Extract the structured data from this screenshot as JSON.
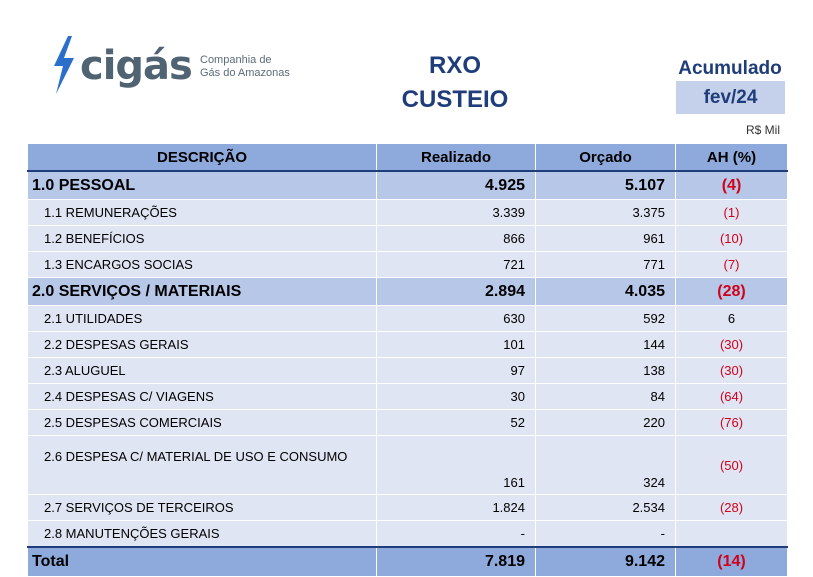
{
  "logo": {
    "name": "cigás",
    "subtitle_line1": "Companhia de",
    "subtitle_line2": "Gás do Amazonas",
    "color": "#4f6373",
    "bolt_color": "#2a6fc9"
  },
  "title1": "RXO",
  "title2": "CUSTEIO",
  "period_label": "Acumulado",
  "period": "fev/24",
  "unit": "R$ Mil",
  "headers": {
    "desc": "DESCRIÇÃO",
    "realizado": "Realizado",
    "orcado": "Orçado",
    "ah": "AH (%)"
  },
  "rows": [
    {
      "desc": "1.0 PESSOAL",
      "realizado": "4.925",
      "orcado": "5.107",
      "ah": "(4)"
    },
    {
      "desc": "1.1 REMUNERAÇÕES",
      "realizado": "3.339",
      "orcado": "3.375",
      "ah": "(1)"
    },
    {
      "desc": "1.2 BENEFÍCIOS",
      "realizado": "866",
      "orcado": "961",
      "ah": "(10)"
    },
    {
      "desc": "1.3 ENCARGOS SOCIAS",
      "realizado": "721",
      "orcado": "771",
      "ah": "(7)"
    },
    {
      "desc": "2.0 SERVIÇOS / MATERIAIS",
      "realizado": "2.894",
      "orcado": "4.035",
      "ah": "(28)"
    },
    {
      "desc": "2.1 UTILIDADES",
      "realizado": "630",
      "orcado": "592",
      "ah": "6"
    },
    {
      "desc": "2.2 DESPESAS GERAIS",
      "realizado": "101",
      "orcado": "144",
      "ah": "(30)"
    },
    {
      "desc": "2.3 ALUGUEL",
      "realizado": "97",
      "orcado": "138",
      "ah": "(30)"
    },
    {
      "desc": "2.4 DESPESAS C/ VIAGENS",
      "realizado": "30",
      "orcado": "84",
      "ah": "(64)"
    },
    {
      "desc": "2.5 DESPESAS COMERCIAIS",
      "realizado": "52",
      "orcado": "220",
      "ah": "(76)"
    },
    {
      "desc": "2.6 DESPESA C/ MATERIAL DE USO E CONSUMO",
      "realizado": "161",
      "orcado": "324",
      "ah": "(50)"
    },
    {
      "desc": "2.7 SERVIÇOS DE TERCEIROS",
      "realizado": "1.824",
      "orcado": "2.534",
      "ah": "(28)"
    },
    {
      "desc": "2.8 MANUTENÇÕES GERAIS",
      "realizado": "-",
      "orcado": "-",
      "ah": ""
    }
  ],
  "total": {
    "desc": "Total",
    "realizado": "7.819",
    "orcado": "9.142",
    "ah": "(14)"
  },
  "colors": {
    "header": "#8ea9db",
    "group": "#b7c7e7",
    "subrow": "#dfe5f3",
    "title": "#1f3d7a",
    "negative": "#d0021b"
  }
}
